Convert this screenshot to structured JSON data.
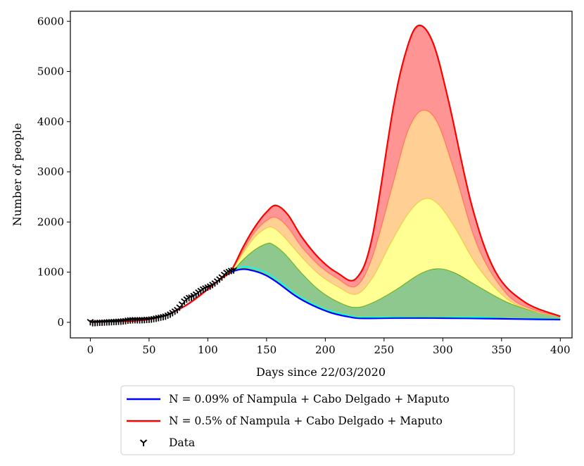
{
  "chart_data": {
    "type": "area",
    "xlabel": "Days since 22/03/2020",
    "ylabel": "Number of people",
    "xlim": [
      -17,
      410
    ],
    "ylim": [
      -310,
      6200
    ],
    "xticks": [
      0,
      50,
      100,
      150,
      200,
      250,
      300,
      350,
      400
    ],
    "yticks": [
      0,
      1000,
      2000,
      3000,
      4000,
      5000,
      6000
    ],
    "colors": {
      "blue": "#0000ff",
      "red": "#ff0000",
      "cyan": "#00ffff",
      "green_band": "#5fb15f",
      "yellow_band": "#ffff66",
      "orange_band": "#ffbb66",
      "red_band": "#ff6666"
    },
    "bands": [
      {
        "name": "band-1",
        "color": "#5fb15f",
        "edge": "#2ca02c",
        "lower": [
          [
            0,
            5
          ],
          [
            50,
            60
          ],
          [
            80,
            320
          ],
          [
            110,
            850
          ],
          [
            120,
            1000
          ],
          [
            130,
            1060
          ],
          [
            140,
            1020
          ],
          [
            150,
            930
          ],
          [
            160,
            780
          ],
          [
            175,
            520
          ],
          [
            190,
            330
          ],
          [
            205,
            190
          ],
          [
            220,
            110
          ],
          [
            230,
            80
          ],
          [
            260,
            85
          ],
          [
            290,
            85
          ],
          [
            320,
            80
          ],
          [
            350,
            70
          ],
          [
            380,
            60
          ],
          [
            400,
            55
          ]
        ],
        "upper": [
          [
            0,
            5
          ],
          [
            50,
            60
          ],
          [
            80,
            320
          ],
          [
            110,
            850
          ],
          [
            120,
            1000
          ],
          [
            130,
            1250
          ],
          [
            140,
            1450
          ],
          [
            150,
            1570
          ],
          [
            155,
            1560
          ],
          [
            165,
            1380
          ],
          [
            180,
            980
          ],
          [
            195,
            640
          ],
          [
            210,
            420
          ],
          [
            225,
            300
          ],
          [
            240,
            390
          ],
          [
            260,
            650
          ],
          [
            280,
            960
          ],
          [
            295,
            1070
          ],
          [
            310,
            990
          ],
          [
            330,
            720
          ],
          [
            355,
            400
          ],
          [
            380,
            210
          ],
          [
            400,
            130
          ]
        ]
      },
      {
        "name": "band-2",
        "color": "#ffff66",
        "edge": "#dddd33",
        "lower": [
          [
            0,
            5
          ],
          [
            50,
            60
          ],
          [
            80,
            320
          ],
          [
            110,
            850
          ],
          [
            120,
            1000
          ],
          [
            130,
            1250
          ],
          [
            140,
            1450
          ],
          [
            150,
            1570
          ],
          [
            155,
            1560
          ],
          [
            165,
            1380
          ],
          [
            180,
            980
          ],
          [
            195,
            640
          ],
          [
            210,
            420
          ],
          [
            225,
            300
          ],
          [
            240,
            390
          ],
          [
            260,
            650
          ],
          [
            280,
            960
          ],
          [
            295,
            1070
          ],
          [
            310,
            990
          ],
          [
            330,
            720
          ],
          [
            355,
            400
          ],
          [
            380,
            210
          ],
          [
            400,
            130
          ]
        ],
        "upper": [
          [
            0,
            5
          ],
          [
            50,
            60
          ],
          [
            80,
            320
          ],
          [
            110,
            850
          ],
          [
            120,
            1040
          ],
          [
            130,
            1380
          ],
          [
            140,
            1700
          ],
          [
            150,
            1880
          ],
          [
            156,
            1880
          ],
          [
            165,
            1700
          ],
          [
            180,
            1300
          ],
          [
            195,
            950
          ],
          [
            210,
            720
          ],
          [
            226,
            560
          ],
          [
            240,
            880
          ],
          [
            255,
            1550
          ],
          [
            270,
            2150
          ],
          [
            283,
            2450
          ],
          [
            295,
            2380
          ],
          [
            310,
            1900
          ],
          [
            330,
            1100
          ],
          [
            355,
            460
          ],
          [
            380,
            210
          ],
          [
            400,
            130
          ]
        ]
      },
      {
        "name": "band-3",
        "color": "#ffbb66",
        "edge": "#ff8844",
        "lower": [
          [
            0,
            5
          ],
          [
            50,
            60
          ],
          [
            80,
            320
          ],
          [
            110,
            850
          ],
          [
            120,
            1040
          ],
          [
            130,
            1380
          ],
          [
            140,
            1700
          ],
          [
            150,
            1880
          ],
          [
            156,
            1880
          ],
          [
            165,
            1700
          ],
          [
            180,
            1300
          ],
          [
            195,
            950
          ],
          [
            210,
            720
          ],
          [
            226,
            560
          ],
          [
            240,
            880
          ],
          [
            255,
            1550
          ],
          [
            270,
            2150
          ],
          [
            283,
            2450
          ],
          [
            295,
            2380
          ],
          [
            310,
            1900
          ],
          [
            330,
            1100
          ],
          [
            355,
            460
          ],
          [
            380,
            210
          ],
          [
            400,
            130
          ]
        ],
        "upper": [
          [
            0,
            5
          ],
          [
            50,
            60
          ],
          [
            80,
            320
          ],
          [
            110,
            850
          ],
          [
            120,
            1040
          ],
          [
            130,
            1430
          ],
          [
            140,
            1800
          ],
          [
            150,
            2030
          ],
          [
            158,
            2090
          ],
          [
            168,
            1900
          ],
          [
            180,
            1500
          ],
          [
            195,
            1130
          ],
          [
            210,
            880
          ],
          [
            226,
            720
          ],
          [
            240,
            1300
          ],
          [
            258,
            2800
          ],
          [
            270,
            3800
          ],
          [
            282,
            4220
          ],
          [
            295,
            4000
          ],
          [
            310,
            3000
          ],
          [
            330,
            1500
          ],
          [
            355,
            550
          ],
          [
            380,
            230
          ],
          [
            400,
            130
          ]
        ]
      },
      {
        "name": "band-4",
        "color": "#ff6666",
        "edge": "#ff0000",
        "lower": [
          [
            0,
            5
          ],
          [
            50,
            60
          ],
          [
            80,
            320
          ],
          [
            110,
            850
          ],
          [
            120,
            1040
          ],
          [
            130,
            1430
          ],
          [
            140,
            1800
          ],
          [
            150,
            2030
          ],
          [
            158,
            2090
          ],
          [
            168,
            1900
          ],
          [
            180,
            1500
          ],
          [
            195,
            1130
          ],
          [
            210,
            880
          ],
          [
            226,
            720
          ],
          [
            240,
            1300
          ],
          [
            258,
            2800
          ],
          [
            270,
            3800
          ],
          [
            282,
            4220
          ],
          [
            295,
            4000
          ],
          [
            310,
            3000
          ],
          [
            330,
            1500
          ],
          [
            355,
            550
          ],
          [
            380,
            230
          ],
          [
            400,
            130
          ]
        ],
        "upper": [
          [
            0,
            5
          ],
          [
            50,
            60
          ],
          [
            80,
            320
          ],
          [
            110,
            850
          ],
          [
            120,
            1040
          ],
          [
            130,
            1500
          ],
          [
            140,
            1900
          ],
          [
            150,
            2200
          ],
          [
            158,
            2330
          ],
          [
            168,
            2150
          ],
          [
            180,
            1700
          ],
          [
            195,
            1270
          ],
          [
            210,
            990
          ],
          [
            226,
            870
          ],
          [
            240,
            1700
          ],
          [
            258,
            4300
          ],
          [
            270,
            5500
          ],
          [
            280,
            5920
          ],
          [
            292,
            5550
          ],
          [
            305,
            4400
          ],
          [
            325,
            2300
          ],
          [
            345,
            1000
          ],
          [
            370,
            400
          ],
          [
            400,
            120
          ]
        ]
      }
    ],
    "series": [
      {
        "name": "N = 0.09% of Nampula + Cabo Delgado + Maputo",
        "color": "#0000ff",
        "points": [
          [
            0,
            5
          ],
          [
            50,
            60
          ],
          [
            80,
            320
          ],
          [
            110,
            850
          ],
          [
            120,
            1000
          ],
          [
            130,
            1060
          ],
          [
            140,
            1020
          ],
          [
            150,
            930
          ],
          [
            160,
            780
          ],
          [
            175,
            520
          ],
          [
            190,
            330
          ],
          [
            205,
            190
          ],
          [
            220,
            110
          ],
          [
            230,
            80
          ],
          [
            260,
            85
          ],
          [
            290,
            85
          ],
          [
            320,
            80
          ],
          [
            350,
            70
          ],
          [
            380,
            60
          ],
          [
            400,
            55
          ]
        ]
      },
      {
        "name": "N = 0.5% of Nampula + Cabo Delgado + Maputo",
        "color": "#ff0000",
        "points": [
          [
            0,
            5
          ],
          [
            50,
            60
          ],
          [
            80,
            320
          ],
          [
            110,
            850
          ],
          [
            120,
            1040
          ],
          [
            130,
            1500
          ],
          [
            140,
            1900
          ],
          [
            150,
            2200
          ],
          [
            158,
            2330
          ],
          [
            168,
            2150
          ],
          [
            180,
            1700
          ],
          [
            195,
            1270
          ],
          [
            210,
            990
          ],
          [
            226,
            870
          ],
          [
            240,
            1700
          ],
          [
            258,
            4300
          ],
          [
            270,
            5500
          ],
          [
            280,
            5920
          ],
          [
            292,
            5550
          ],
          [
            305,
            4400
          ],
          [
            325,
            2300
          ],
          [
            345,
            1000
          ],
          [
            370,
            400
          ],
          [
            400,
            120
          ]
        ]
      }
    ],
    "cyan_curve": [
      [
        110,
        850
      ],
      [
        120,
        1020
      ],
      [
        130,
        1110
      ],
      [
        140,
        1080
      ],
      [
        150,
        990
      ],
      [
        160,
        840
      ],
      [
        175,
        570
      ],
      [
        190,
        370
      ],
      [
        205,
        230
      ],
      [
        220,
        140
      ],
      [
        232,
        100
      ],
      [
        260,
        110
      ],
      [
        290,
        115
      ],
      [
        320,
        105
      ],
      [
        350,
        90
      ],
      [
        380,
        75
      ],
      [
        400,
        65
      ]
    ],
    "data_points": [
      [
        0,
        10
      ],
      [
        2,
        -10
      ],
      [
        4,
        -8
      ],
      [
        6,
        -5
      ],
      [
        8,
        -2
      ],
      [
        10,
        0
      ],
      [
        12,
        2
      ],
      [
        14,
        5
      ],
      [
        16,
        8
      ],
      [
        18,
        10
      ],
      [
        20,
        12
      ],
      [
        22,
        15
      ],
      [
        24,
        18
      ],
      [
        26,
        20
      ],
      [
        28,
        25
      ],
      [
        30,
        30
      ],
      [
        32,
        40
      ],
      [
        34,
        45
      ],
      [
        36,
        48
      ],
      [
        38,
        50
      ],
      [
        40,
        48
      ],
      [
        42,
        46
      ],
      [
        44,
        50
      ],
      [
        46,
        52
      ],
      [
        48,
        55
      ],
      [
        50,
        58
      ],
      [
        52,
        62
      ],
      [
        54,
        70
      ],
      [
        56,
        80
      ],
      [
        58,
        90
      ],
      [
        60,
        100
      ],
      [
        62,
        110
      ],
      [
        64,
        120
      ],
      [
        66,
        140
      ],
      [
        68,
        160
      ],
      [
        70,
        190
      ],
      [
        72,
        220
      ],
      [
        74,
        250
      ],
      [
        76,
        300
      ],
      [
        78,
        360
      ],
      [
        80,
        420
      ],
      [
        82,
        460
      ],
      [
        84,
        490
      ],
      [
        86,
        500
      ],
      [
        88,
        530
      ],
      [
        90,
        560
      ],
      [
        92,
        600
      ],
      [
        94,
        630
      ],
      [
        96,
        660
      ],
      [
        98,
        680
      ],
      [
        100,
        700
      ],
      [
        102,
        720
      ],
      [
        104,
        750
      ],
      [
        106,
        780
      ],
      [
        108,
        820
      ],
      [
        110,
        860
      ],
      [
        112,
        900
      ],
      [
        114,
        950
      ],
      [
        116,
        990
      ],
      [
        118,
        1010
      ],
      [
        120,
        1030
      ],
      [
        122,
        1040
      ]
    ],
    "legend": [
      {
        "name": "legend-blue-line",
        "label": "N = 0.09% of Nampula + Cabo Delgado + Maputo",
        "color": "#0000ff",
        "marker": "line"
      },
      {
        "name": "legend-red-line",
        "label": "N = 0.5% of Nampula + Cabo Delgado + Maputo",
        "color": "#ff0000",
        "marker": "line"
      },
      {
        "name": "legend-data",
        "label": "Data",
        "color": "#000000",
        "marker": "tri_down"
      }
    ],
    "legend_position": "bottom-center, below the axes"
  }
}
